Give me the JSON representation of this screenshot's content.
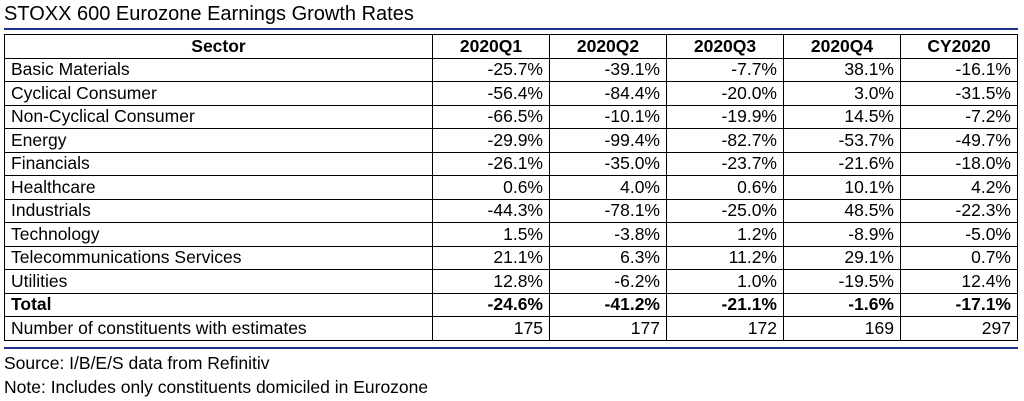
{
  "title": "STOXX 600 Eurozone Earnings Growth Rates",
  "colors": {
    "rule": "#1f2f8f",
    "text": "#000000",
    "border": "#000000"
  },
  "table": {
    "headers": [
      "Sector",
      "2020Q1",
      "2020Q2",
      "2020Q3",
      "2020Q4",
      "CY2020"
    ],
    "rows": [
      {
        "sector": "Basic Materials",
        "values": [
          "-25.7%",
          "-39.1%",
          "-7.7%",
          "38.1%",
          "-16.1%"
        ]
      },
      {
        "sector": "Cyclical Consumer",
        "values": [
          "-56.4%",
          "-84.4%",
          "-20.0%",
          "3.0%",
          "-31.5%"
        ]
      },
      {
        "sector": "Non-Cyclical Consumer",
        "values": [
          "-66.5%",
          "-10.1%",
          "-19.9%",
          "14.5%",
          "-7.2%"
        ]
      },
      {
        "sector": "Energy",
        "values": [
          "-29.9%",
          "-99.4%",
          "-82.7%",
          "-53.7%",
          "-49.7%"
        ]
      },
      {
        "sector": "Financials",
        "values": [
          "-26.1%",
          "-35.0%",
          "-23.7%",
          "-21.6%",
          "-18.0%"
        ]
      },
      {
        "sector": "Healthcare",
        "values": [
          "0.6%",
          "4.0%",
          "0.6%",
          "10.1%",
          "4.2%"
        ]
      },
      {
        "sector": "Industrials",
        "values": [
          "-44.3%",
          "-78.1%",
          "-25.0%",
          "48.5%",
          "-22.3%"
        ]
      },
      {
        "sector": "Technology",
        "values": [
          "1.5%",
          "-3.8%",
          "1.2%",
          "-8.9%",
          "-5.0%"
        ]
      },
      {
        "sector": "Telecommunications Services",
        "values": [
          "21.1%",
          "6.3%",
          "11.2%",
          "29.1%",
          "0.7%"
        ]
      },
      {
        "sector": "Utilities",
        "values": [
          "12.8%",
          "-6.2%",
          "1.0%",
          "-19.5%",
          "12.4%"
        ]
      }
    ],
    "total": {
      "sector": "Total",
      "values": [
        "-24.6%",
        "-41.2%",
        "-21.1%",
        "-1.6%",
        "-17.1%"
      ]
    },
    "constituents": {
      "sector": "Number of constituents with estimates",
      "values": [
        "175",
        "177",
        "172",
        "169",
        "297"
      ]
    }
  },
  "notes": {
    "source": "Source: I/B/E/S data from Refinitiv",
    "scope": "Note: Includes only constituents domiciled in Eurozone"
  }
}
